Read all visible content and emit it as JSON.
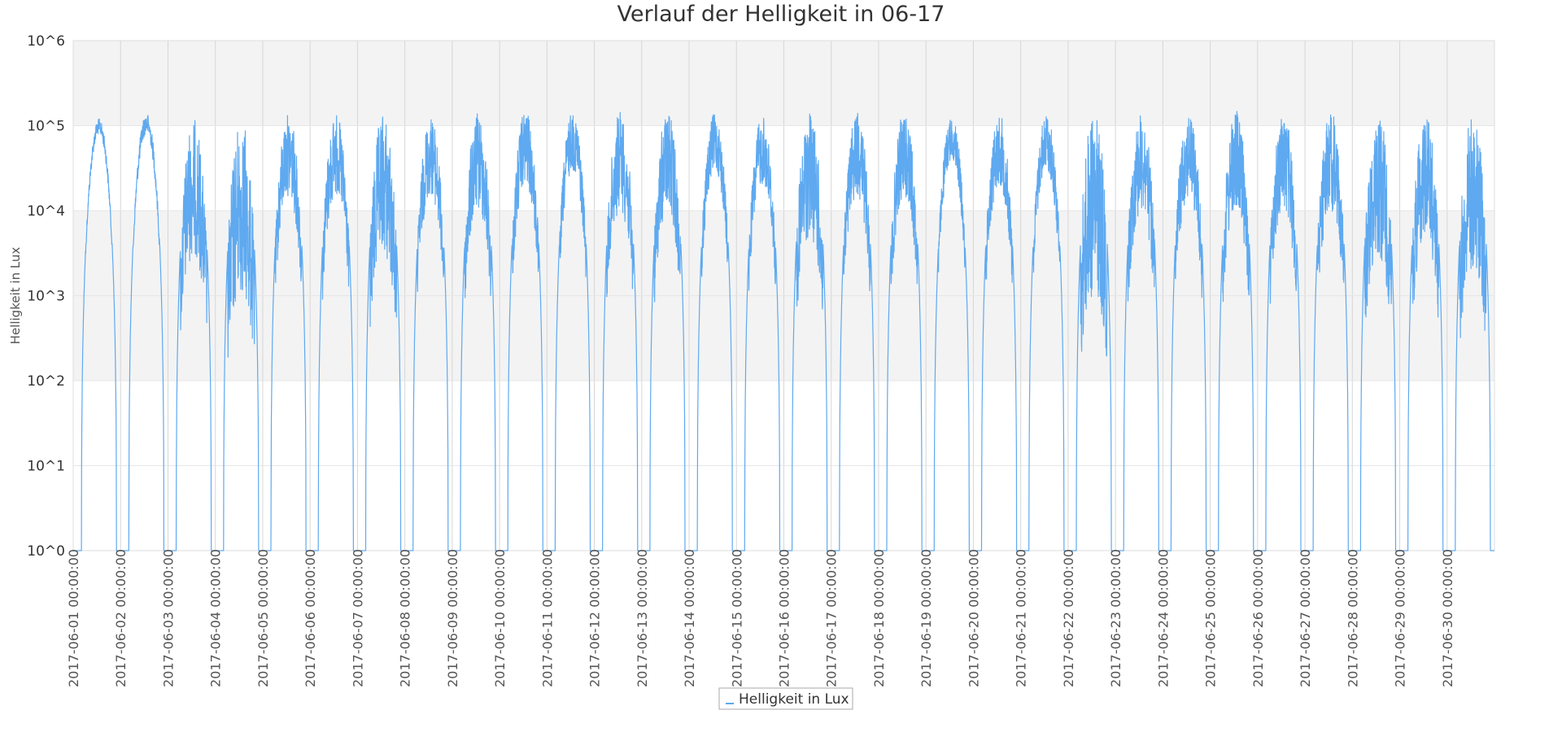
{
  "chart_data": {
    "type": "line",
    "title": "Verlauf der Helligkeit in 06-17",
    "ylabel": "Helligkeit in Lux",
    "xlabel": "",
    "yscale": "log",
    "ylim": [
      1,
      1000000
    ],
    "yticks": [
      "10^0",
      "10^1",
      "10^2",
      "10^3",
      "10^4",
      "10^5",
      "10^6"
    ],
    "ytick_values": [
      1,
      10,
      100,
      1000,
      10000,
      100000,
      1000000
    ],
    "x_range": [
      "2017-06-01 00:00:00",
      "2017-07-01 00:00:00"
    ],
    "xticks": [
      "2017-06-01 00:00:00",
      "2017-06-02 00:00:00",
      "2017-06-03 00:00:00",
      "2017-06-04 00:00:00",
      "2017-06-05 00:00:00",
      "2017-06-06 00:00:00",
      "2017-06-07 00:00:00",
      "2017-06-08 00:00:00",
      "2017-06-09 00:00:00",
      "2017-06-10 00:00:00",
      "2017-06-11 00:00:00",
      "2017-06-12 00:00:00",
      "2017-06-13 00:00:00",
      "2017-06-14 00:00:00",
      "2017-06-15 00:00:00",
      "2017-06-16 00:00:00",
      "2017-06-17 00:00:00",
      "2017-06-18 00:00:00",
      "2017-06-19 00:00:00",
      "2017-06-20 00:00:00",
      "2017-06-21 00:00:00",
      "2017-06-22 00:00:00",
      "2017-06-23 00:00:00",
      "2017-06-24 00:00:00",
      "2017-06-25 00:00:00",
      "2017-06-26 00:00:00",
      "2017-06-27 00:00:00",
      "2017-06-28 00:00:00",
      "2017-06-29 00:00:00",
      "2017-06-30 00:00:00"
    ],
    "grid": true,
    "alternating_bands": true,
    "legend_position": "bottom-center",
    "series": [
      {
        "name": "Helligkeit in Lux",
        "color": "#5ea9f0",
        "daily_peak_lux": [
          120000,
          140000,
          120000,
          120000,
          140000,
          140000,
          140000,
          130000,
          140000,
          150000,
          150000,
          150000,
          150000,
          140000,
          130000,
          150000,
          150000,
          150000,
          130000,
          140000,
          140000,
          150000,
          150000,
          150000,
          150000,
          150000,
          150000,
          150000,
          150000,
          150000
        ],
        "daily_midday_min_lux": [
          80000,
          80000,
          3000,
          1000,
          15000,
          15000,
          3000,
          15000,
          10000,
          20000,
          30000,
          10000,
          10000,
          30000,
          20000,
          5000,
          15000,
          15000,
          40000,
          20000,
          30000,
          1000,
          10000,
          15000,
          10000,
          10000,
          10000,
          3000,
          5000,
          2000
        ],
        "night_value_lux": 1
      }
    ]
  }
}
